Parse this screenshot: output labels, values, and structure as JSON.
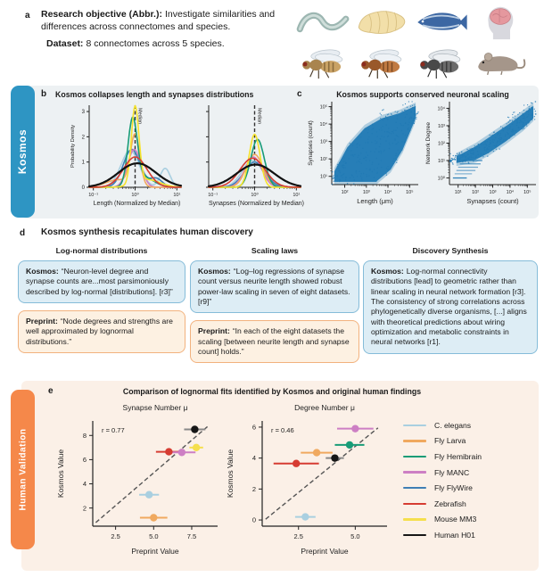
{
  "tabs": {
    "kosmos": "Kosmos",
    "human": "Human Validation"
  },
  "colors": {
    "kosmos_blue": "#2e95c3",
    "validation_orange": "#f5884a",
    "band_blue_bg": "#edf1f3",
    "band_orange_bg": "#fbf0e7",
    "box_blue_bg": "#ddedf5",
    "box_blue_border": "#85bcd9",
    "box_orange_bg": "#fdf1e2",
    "box_orange_border": "#f2b27e",
    "scatter_blue": "#2079b4"
  },
  "panel_a": {
    "letter": "a",
    "objective_label": "Research objective (Abbr.):",
    "objective_text": "Investigate similarities and differences across connectomes and species.",
    "dataset_label": "Dataset:",
    "dataset_text": "8 connectomes across 5 species.",
    "species_icons": [
      "c-elegans-worm-icon",
      "fly-larva-icon",
      "zebrafish-icon",
      "human-brain-icon",
      "fruit-fly-light-icon",
      "fruit-fly-orange-icon",
      "fly-dark-icon",
      "mouse-icon"
    ]
  },
  "panel_b": {
    "letter": "b",
    "title": "Kosmos collapses length and synapses distributions"
  },
  "panel_c": {
    "letter": "c",
    "title": "Kosmos supports conserved neuronal scaling"
  },
  "panel_d": {
    "letter": "d",
    "title": "Kosmos synthesis recapitulates human discovery",
    "columns": [
      {
        "heading": "Log-normal distributions",
        "boxes": [
          {
            "kind": "kosmos",
            "label": "Kosmos:",
            "text": "“Neuron-level degree and synapse counts are...most parsimoniously described by log-normal [distributions]. [r3]”"
          },
          {
            "kind": "preprint",
            "label": "Preprint:",
            "text": "“Node degrees and strengths are well approximated by lognormal distributions.”"
          }
        ]
      },
      {
        "heading": "Scaling laws",
        "boxes": [
          {
            "kind": "kosmos",
            "label": "Kosmos:",
            "text": "“Log–log regressions of synapse count versus neurite length showed robust power-law scaling in seven of eight datasets. [r9]”"
          },
          {
            "kind": "preprint",
            "label": "Preprint:",
            "text": "“In each of the eight datasets the scaling [between neurite length and synapse count] holds.”"
          }
        ]
      },
      {
        "heading": "Discovery Synthesis",
        "boxes": [
          {
            "kind": "kosmos",
            "label": "Kosmos:",
            "text": "Log-normal connectivity distributions [lead] to geometric rather than linear scaling in neural network formation [r3]. The consistency of strong correlations across phylogenetically diverse organisms, [...] aligns with theoretical predictions about wiring optimization and metabolic constraints in neural networks [r1]."
          }
        ]
      }
    ]
  },
  "panel_e": {
    "letter": "e",
    "title": "Comparison of lognormal fits identified by Kosmos and original human findings",
    "legend": [
      {
        "label": "C. elegans",
        "color": "#a9cfe0"
      },
      {
        "label": "Fly Larva",
        "color": "#f0a95f"
      },
      {
        "label": "Fly Hemibrain",
        "color": "#189c77"
      },
      {
        "label": "Fly MANC",
        "color": "#cd7fc4"
      },
      {
        "label": "Fly FlyWire",
        "color": "#3f7fb5"
      },
      {
        "label": "Zebrafish",
        "color": "#d63c32"
      },
      {
        "label": "Mouse MM3",
        "color": "#f5df4d"
      },
      {
        "label": "Human H01",
        "color": "#161616"
      }
    ]
  },
  "chart_data": [
    {
      "id": "density-length",
      "type": "line",
      "subtype": "density",
      "xlabel": "Length (Normalized by Median)",
      "ylabel": "Probability Density",
      "xlog_range": [
        -1.1,
        1.1
      ],
      "ymax": 3.25,
      "show_ytick_labels": true,
      "xticks": [
        {
          "label": "10⁻¹",
          "log": -1
        },
        {
          "label": "10⁰",
          "log": 0
        },
        {
          "label": "10¹",
          "log": 1
        }
      ],
      "yticks": [
        0,
        1,
        2,
        3
      ],
      "median_label": "Median",
      "series": [
        {
          "name": "C. elegans",
          "color": "#a9cfe0",
          "components": [
            [
              1.45,
              -0.12,
              0.22
            ],
            [
              0.75,
              0.72,
              0.12
            ]
          ]
        },
        {
          "name": "Fly FlyWire",
          "color": "#3f7fb5",
          "components": [
            [
              1.5,
              -0.08,
              0.2
            ],
            [
              0.35,
              0.5,
              0.15
            ]
          ]
        },
        {
          "name": "Fly MANC",
          "color": "#cd7fc4",
          "components": [
            [
              1.5,
              -0.02,
              0.16
            ]
          ]
        },
        {
          "name": "Fly Larva",
          "color": "#f0a95f",
          "components": [
            [
              2.0,
              0.0,
              0.11
            ],
            [
              0.3,
              -0.4,
              0.3
            ]
          ]
        },
        {
          "name": "Fly Hemibrain",
          "color": "#189c77",
          "components": [
            [
              2.55,
              -0.06,
              0.11
            ],
            [
              0.4,
              0.2,
              0.25
            ]
          ]
        },
        {
          "name": "Mouse MM3",
          "color": "#f5e32c",
          "components": [
            [
              3.05,
              0.0,
              0.09
            ],
            [
              0.3,
              0.3,
              0.3
            ]
          ]
        },
        {
          "name": "Zebrafish",
          "color": "#d63c32",
          "components": [
            [
              1.2,
              0.0,
              0.28
            ]
          ]
        },
        {
          "name": "Human H01",
          "color": "#111111",
          "width": 2.2,
          "components": [
            [
              0.95,
              0.05,
              0.45
            ]
          ]
        }
      ]
    },
    {
      "id": "density-synapses",
      "type": "line",
      "subtype": "density",
      "xlabel": "Synapses (Normalized by Median)",
      "ylabel": "",
      "xlog_range": [
        -1.1,
        1.1
      ],
      "ymax": 3.25,
      "show_ytick_labels": false,
      "xticks": [
        {
          "label": "10⁻¹",
          "log": -1
        },
        {
          "label": "10⁰",
          "log": 0
        },
        {
          "label": "10¹",
          "log": 1
        }
      ],
      "yticks": [
        0,
        1,
        2,
        3
      ],
      "median_label": "Median",
      "series": [
        {
          "name": "C. elegans",
          "color": "#a9cfe0",
          "components": [
            [
              1.05,
              -0.05,
              0.25
            ]
          ]
        },
        {
          "name": "Fly FlyWire",
          "color": "#3f7fb5",
          "components": [
            [
              1.0,
              0.0,
              0.25
            ]
          ]
        },
        {
          "name": "Fly MANC",
          "color": "#cd7fc4",
          "components": [
            [
              1.2,
              -0.03,
              0.2
            ]
          ]
        },
        {
          "name": "Fly Larva",
          "color": "#f0a95f",
          "components": [
            [
              1.3,
              0.0,
              0.2
            ]
          ]
        },
        {
          "name": "Fly Hemibrain",
          "color": "#189c77",
          "components": [
            [
              1.9,
              0.07,
              0.16
            ]
          ]
        },
        {
          "name": "Mouse MM3",
          "color": "#f5e32c",
          "components": [
            [
              2.1,
              0.0,
              0.13
            ]
          ]
        },
        {
          "name": "Zebrafish",
          "color": "#d63c32",
          "components": [
            [
              1.15,
              -0.05,
              0.3
            ]
          ]
        },
        {
          "name": "Human H01",
          "color": "#111111",
          "width": 2.2,
          "components": [
            [
              0.9,
              0.02,
              0.45
            ]
          ]
        }
      ]
    },
    {
      "id": "scaling-length-synapses",
      "type": "scatter",
      "subtype": "cloud",
      "seed": 11,
      "xlabel": "Length (μm)",
      "ylabel": "Synapses (count)",
      "color": "#2079b4",
      "note": "dense log-log point cloud, robust power-law scaling of synapse count vs neurite length",
      "xticks": [
        {
          "label": "10²",
          "f": 0.15
        },
        {
          "label": "10³",
          "f": 0.4
        },
        {
          "label": "10⁴",
          "f": 0.65
        },
        {
          "label": "10⁵",
          "f": 0.9
        }
      ],
      "yticks": [
        {
          "label": "10¹",
          "f": 0.1
        },
        {
          "label": "10²",
          "f": 0.31
        },
        {
          "label": "10³",
          "f": 0.52
        },
        {
          "label": "10⁴",
          "f": 0.73
        },
        {
          "label": "10⁵",
          "f": 0.94
        }
      ],
      "envelope": {
        "lower": [
          [
            0.03,
            0.04
          ],
          [
            0.52,
            0.04
          ],
          [
            0.68,
            0.18
          ],
          [
            0.82,
            0.42
          ],
          [
            0.97,
            0.8
          ]
        ],
        "upper": [
          [
            0.03,
            0.16
          ],
          [
            0.18,
            0.45
          ],
          [
            0.38,
            0.68
          ],
          [
            0.58,
            0.8
          ],
          [
            0.78,
            0.86
          ],
          [
            0.97,
            0.95
          ]
        ]
      },
      "stripes": [
        [
          0.04,
          0.03,
          0.52,
          1
        ]
      ]
    },
    {
      "id": "scaling-synapses-degree",
      "type": "scatter",
      "subtype": "cloud",
      "seed": 23,
      "xlabel": "Synapses (count)",
      "ylabel": "Network Degree",
      "color": "#2079b4",
      "note": "dense log-log point cloud, conserved scaling of network degree vs synapse count; discrete low-degree stripes bottom-left",
      "xticks": [
        {
          "label": "10¹",
          "f": 0.1
        },
        {
          "label": "10²",
          "f": 0.3
        },
        {
          "label": "10³",
          "f": 0.5
        },
        {
          "label": "10⁴",
          "f": 0.7
        },
        {
          "label": "10⁵",
          "f": 0.9
        }
      ],
      "yticks": [
        {
          "label": "10⁰",
          "f": 0.08
        },
        {
          "label": "10¹",
          "f": 0.29
        },
        {
          "label": "10²",
          "f": 0.5
        },
        {
          "label": "10³",
          "f": 0.71
        },
        {
          "label": "10⁴",
          "f": 0.92
        }
      ],
      "envelope": {
        "lower": [
          [
            0.08,
            0.26
          ],
          [
            0.3,
            0.3
          ],
          [
            0.45,
            0.38
          ],
          [
            0.65,
            0.52
          ],
          [
            0.85,
            0.68
          ],
          [
            0.97,
            0.8
          ]
        ],
        "upper": [
          [
            0.08,
            0.34
          ],
          [
            0.3,
            0.46
          ],
          [
            0.5,
            0.6
          ],
          [
            0.7,
            0.74
          ],
          [
            0.88,
            0.88
          ],
          [
            0.97,
            0.95
          ]
        ]
      },
      "stripes": [
        [
          0.08,
          0.04,
          0.2,
          0.9
        ],
        [
          0.13,
          0.06,
          0.26,
          0.5
        ],
        [
          0.17,
          0.08,
          0.3,
          0.55
        ],
        [
          0.21,
          0.1,
          0.33,
          0.6
        ],
        [
          0.25,
          0.12,
          0.36,
          0.7
        ],
        [
          0.29,
          0.14,
          0.38,
          0.85
        ]
      ]
    },
    {
      "id": "synapse-mu",
      "type": "scatter",
      "title": "Synapse Number μ",
      "r_label": "r = 0.77",
      "xlabel": "Preprint Value",
      "ylabel": "Kosmos Value",
      "xlim": [
        1,
        9.2
      ],
      "ylim": [
        0.5,
        9.2
      ],
      "xticks": [
        "2.5",
        "5.0",
        "7.5"
      ],
      "yticks": [
        "2",
        "4",
        "6",
        "8"
      ],
      "dash_line": [
        [
          1.2,
          0.8
        ],
        [
          8.6,
          8.8
        ]
      ],
      "points": [
        {
          "species": "Human H01",
          "x": 7.7,
          "y": 8.5,
          "xerr": 0.7,
          "color": "#161616",
          "ecolor": "#888888"
        },
        {
          "species": "Mouse MM3",
          "x": 7.8,
          "y": 7.0,
          "xerr": 0.45,
          "color": "#f5df4d"
        },
        {
          "species": "Zebrafish",
          "x": 6.0,
          "y": 6.65,
          "xerr": 0.85,
          "color": "#d63c32"
        },
        {
          "species": "Fly MANC",
          "x": 6.85,
          "y": 6.6,
          "xerr": 0.9,
          "color": "#cd7fc4"
        },
        {
          "species": "C. elegans",
          "x": 4.7,
          "y": 3.1,
          "xerr": 0.65,
          "color": "#a9cfe0"
        },
        {
          "species": "Fly Larva",
          "x": 5.0,
          "y": 1.2,
          "xerr": 0.9,
          "color": "#f0a95f"
        }
      ]
    },
    {
      "id": "degree-mu",
      "type": "scatter",
      "title": "Degree Number μ",
      "r_label": "r = 0.46",
      "xlabel": "Preprint Value",
      "ylabel": "Kosmos Value",
      "xlim": [
        0.9,
        6.4
      ],
      "ylim": [
        -0.4,
        6.4
      ],
      "xticks": [
        "2.5",
        "5.0"
      ],
      "yticks": [
        "0",
        "2",
        "4",
        "6"
      ],
      "dash_line": [
        [
          1.05,
          0.05
        ],
        [
          6.0,
          5.95
        ]
      ],
      "points": [
        {
          "species": "Fly MANC",
          "x": 5.0,
          "y": 5.9,
          "xerr": 0.8,
          "color": "#cd7fc4"
        },
        {
          "species": "Fly Hemibrain",
          "x": 4.75,
          "y": 4.85,
          "xerr": 0.65,
          "color": "#189c77"
        },
        {
          "species": "Fly Larva",
          "x": 3.3,
          "y": 4.35,
          "xerr": 0.7,
          "color": "#f0a95f"
        },
        {
          "species": "Human H01",
          "x": 4.1,
          "y": 4.0,
          "xerr": 0.4,
          "color": "#161616",
          "ecolor": "#888888"
        },
        {
          "species": "Zebrafish",
          "x": 2.4,
          "y": 3.65,
          "xerr": 1.0,
          "color": "#d63c32"
        },
        {
          "species": "C. elegans",
          "x": 2.8,
          "y": 0.2,
          "xerr": 0.45,
          "color": "#a9cfe0"
        }
      ]
    }
  ]
}
